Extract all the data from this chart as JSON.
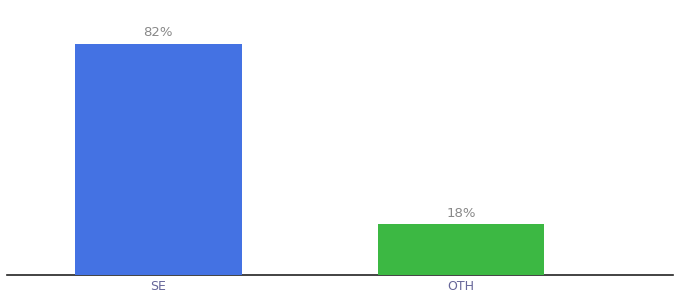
{
  "categories": [
    "SE",
    "OTH"
  ],
  "values": [
    82,
    18
  ],
  "bar_colors": [
    "#4472e3",
    "#3cb843"
  ],
  "label_texts": [
    "82%",
    "18%"
  ],
  "background_color": "#ffffff",
  "ylim": [
    0,
    95
  ],
  "label_fontsize": 9.5,
  "tick_fontsize": 9,
  "x_positions": [
    1,
    2
  ],
  "bar_width": 0.55,
  "xlim": [
    0.5,
    2.7
  ]
}
